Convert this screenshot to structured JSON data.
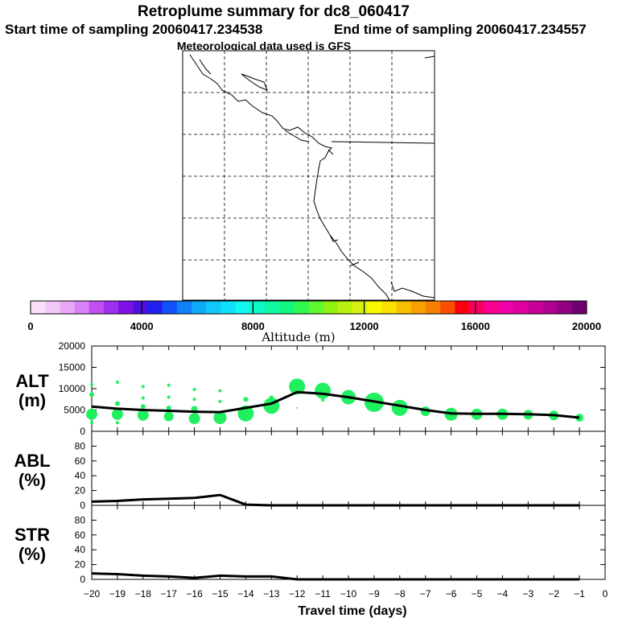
{
  "header": {
    "title": "Retroplume summary for dc8_060417",
    "start_label": "Start time of sampling 20060417.234538",
    "end_label": "End time of sampling 20060417.234557",
    "met_label": "Meteorological data used is GFS"
  },
  "colorbar": {
    "label": "Altitude (m)",
    "ticks": [
      "0",
      "4000",
      "8000",
      "12000",
      "16000",
      "20000"
    ],
    "colors": [
      "#f8e0f8",
      "#f0c8f8",
      "#e8a8f8",
      "#d880f8",
      "#c050f0",
      "#a030f0",
      "#8010e8",
      "#5010e0",
      "#2020f0",
      "#1050f8",
      "#1080f8",
      "#10a8f8",
      "#10c8f8",
      "#10e0f8",
      "#10f8f0",
      "#10f8c8",
      "#10f8a0",
      "#10f880",
      "#30f850",
      "#60f830",
      "#90f010",
      "#b8f010",
      "#d8f010",
      "#f8f800",
      "#f8e000",
      "#f8c000",
      "#f8a000",
      "#f88000",
      "#f85000",
      "#f80010",
      "#f80060",
      "#f80090",
      "#f000a8",
      "#e000a0",
      "#c80098",
      "#b00090",
      "#900080",
      "#700070"
    ]
  },
  "chart_data": [
    {
      "type": "scatter",
      "panel": "ALT",
      "ylabel_line1": "ALT",
      "ylabel_line2": "(m)",
      "xlim": [
        -20,
        0
      ],
      "ylim": [
        0,
        20000
      ],
      "yticks": [
        "20000",
        "15000",
        "10000",
        "5000",
        "0"
      ],
      "median_line": {
        "x": [
          -20,
          -19,
          -18,
          -17,
          -16,
          -15,
          -14,
          -13,
          -12,
          -11,
          -10,
          -9,
          -8,
          -7,
          -6,
          -5,
          -4,
          -3,
          -2,
          -1
        ],
        "y": [
          5800,
          5300,
          5000,
          4800,
          4600,
          4500,
          5500,
          6500,
          9200,
          8800,
          8000,
          7000,
          6000,
          5000,
          4200,
          4100,
          4100,
          4000,
          3800,
          3200
        ]
      },
      "points": [
        {
          "x": -20,
          "y": 4000,
          "r": 7
        },
        {
          "x": -20,
          "y": 8600,
          "r": 3
        },
        {
          "x": -20,
          "y": 11000,
          "r": 2
        },
        {
          "x": -20,
          "y": 2000,
          "r": 2
        },
        {
          "x": -19,
          "y": 4000,
          "r": 7
        },
        {
          "x": -19,
          "y": 6500,
          "r": 3
        },
        {
          "x": -19,
          "y": 11500,
          "r": 2
        },
        {
          "x": -19,
          "y": 2000,
          "r": 2
        },
        {
          "x": -18,
          "y": 3800,
          "r": 7
        },
        {
          "x": -18,
          "y": 7800,
          "r": 2
        },
        {
          "x": -18,
          "y": 10500,
          "r": 2
        },
        {
          "x": -18,
          "y": 5800,
          "r": 3
        },
        {
          "x": -17,
          "y": 3500,
          "r": 6
        },
        {
          "x": -17,
          "y": 8000,
          "r": 2
        },
        {
          "x": -17,
          "y": 10800,
          "r": 2
        },
        {
          "x": -17,
          "y": 5500,
          "r": 3
        },
        {
          "x": -16,
          "y": 3000,
          "r": 7
        },
        {
          "x": -16,
          "y": 7500,
          "r": 2
        },
        {
          "x": -16,
          "y": 9800,
          "r": 2
        },
        {
          "x": -16,
          "y": 5200,
          "r": 4
        },
        {
          "x": -15,
          "y": 3200,
          "r": 8
        },
        {
          "x": -15,
          "y": 9500,
          "r": 2
        },
        {
          "x": -15,
          "y": 7000,
          "r": 2
        },
        {
          "x": -14,
          "y": 4200,
          "r": 10
        },
        {
          "x": -14,
          "y": 7500,
          "r": 3
        },
        {
          "x": -13,
          "y": 6000,
          "r": 10
        },
        {
          "x": -13,
          "y": 7800,
          "r": 3
        },
        {
          "x": -12,
          "y": 10500,
          "r": 10
        },
        {
          "x": -12,
          "y": 5500,
          "r": 1
        },
        {
          "x": -11,
          "y": 9500,
          "r": 10
        },
        {
          "x": -11,
          "y": 7300,
          "r": 2
        },
        {
          "x": -10,
          "y": 8000,
          "r": 9
        },
        {
          "x": -9,
          "y": 6800,
          "r": 12
        },
        {
          "x": -8,
          "y": 5500,
          "r": 10
        },
        {
          "x": -7,
          "y": 4700,
          "r": 6
        },
        {
          "x": -6,
          "y": 4000,
          "r": 8
        },
        {
          "x": -5,
          "y": 4000,
          "r": 7
        },
        {
          "x": -4,
          "y": 4000,
          "r": 7
        },
        {
          "x": -3,
          "y": 3900,
          "r": 6
        },
        {
          "x": -2,
          "y": 3700,
          "r": 6
        },
        {
          "x": -1,
          "y": 3200,
          "r": 5
        }
      ]
    },
    {
      "type": "line",
      "panel": "ABL",
      "ylabel_line1": "ABL",
      "ylabel_line2": "(%)",
      "xlim": [
        -20,
        0
      ],
      "ylim": [
        0,
        100
      ],
      "yticks": [
        "80",
        "60",
        "40",
        "20",
        "0"
      ],
      "x": [
        -20,
        -19,
        -18,
        -17,
        -16,
        -15,
        -14,
        -13,
        -12,
        -11,
        -10,
        -9,
        -8,
        -7,
        -6,
        -5,
        -4,
        -3,
        -2,
        -1
      ],
      "y": [
        5,
        6,
        8,
        9,
        10,
        14,
        1,
        0,
        0,
        0,
        0,
        0,
        0,
        0,
        0,
        0,
        0,
        0,
        0,
        0
      ]
    },
    {
      "type": "line",
      "panel": "STR",
      "ylabel_line1": "STR",
      "ylabel_line2": "(%)",
      "xlim": [
        -20,
        0
      ],
      "ylim": [
        0,
        100
      ],
      "yticks": [
        "80",
        "60",
        "40",
        "20",
        "0"
      ],
      "xticks": [
        "−20",
        "−19",
        "−18",
        "−17",
        "−16",
        "−15",
        "−14",
        "−13",
        "−12",
        "−11",
        "−10",
        "−9",
        "−8",
        "−7",
        "−6",
        "−5",
        "−4",
        "−3",
        "−2",
        "−1",
        "0"
      ],
      "xlabel": "Travel time (days)",
      "x": [
        -20,
        -19,
        -18,
        -17,
        -16,
        -15,
        -14,
        -13,
        -12,
        -11,
        -10,
        -9,
        -8,
        -7,
        -6,
        -5,
        -4,
        -3,
        -2,
        -1
      ],
      "y": [
        8,
        7,
        5,
        4,
        2,
        5,
        4,
        4,
        0,
        0,
        0,
        0,
        0,
        0,
        0,
        0,
        0,
        0,
        0,
        0
      ]
    }
  ]
}
